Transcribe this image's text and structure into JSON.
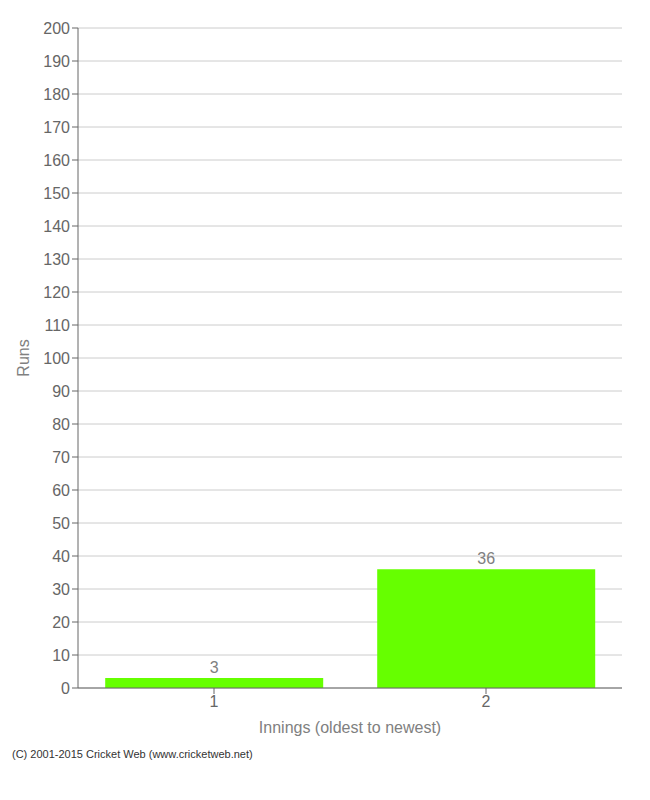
{
  "chart_data": {
    "type": "bar",
    "categories": [
      "1",
      "2"
    ],
    "values": [
      3,
      36
    ],
    "color": "#66ff00",
    "ylabel": "Runs",
    "xlabel": "Innings (oldest to newest)",
    "ylim": [
      0,
      200
    ],
    "yticks": [
      0,
      10,
      20,
      30,
      40,
      50,
      60,
      70,
      80,
      90,
      100,
      110,
      120,
      130,
      140,
      150,
      160,
      170,
      180,
      190,
      200
    ],
    "grid": true,
    "data_labels": true,
    "annotations": [
      "(C) 2001-2015 Cricket Web (www.cricketweb.net)"
    ]
  }
}
